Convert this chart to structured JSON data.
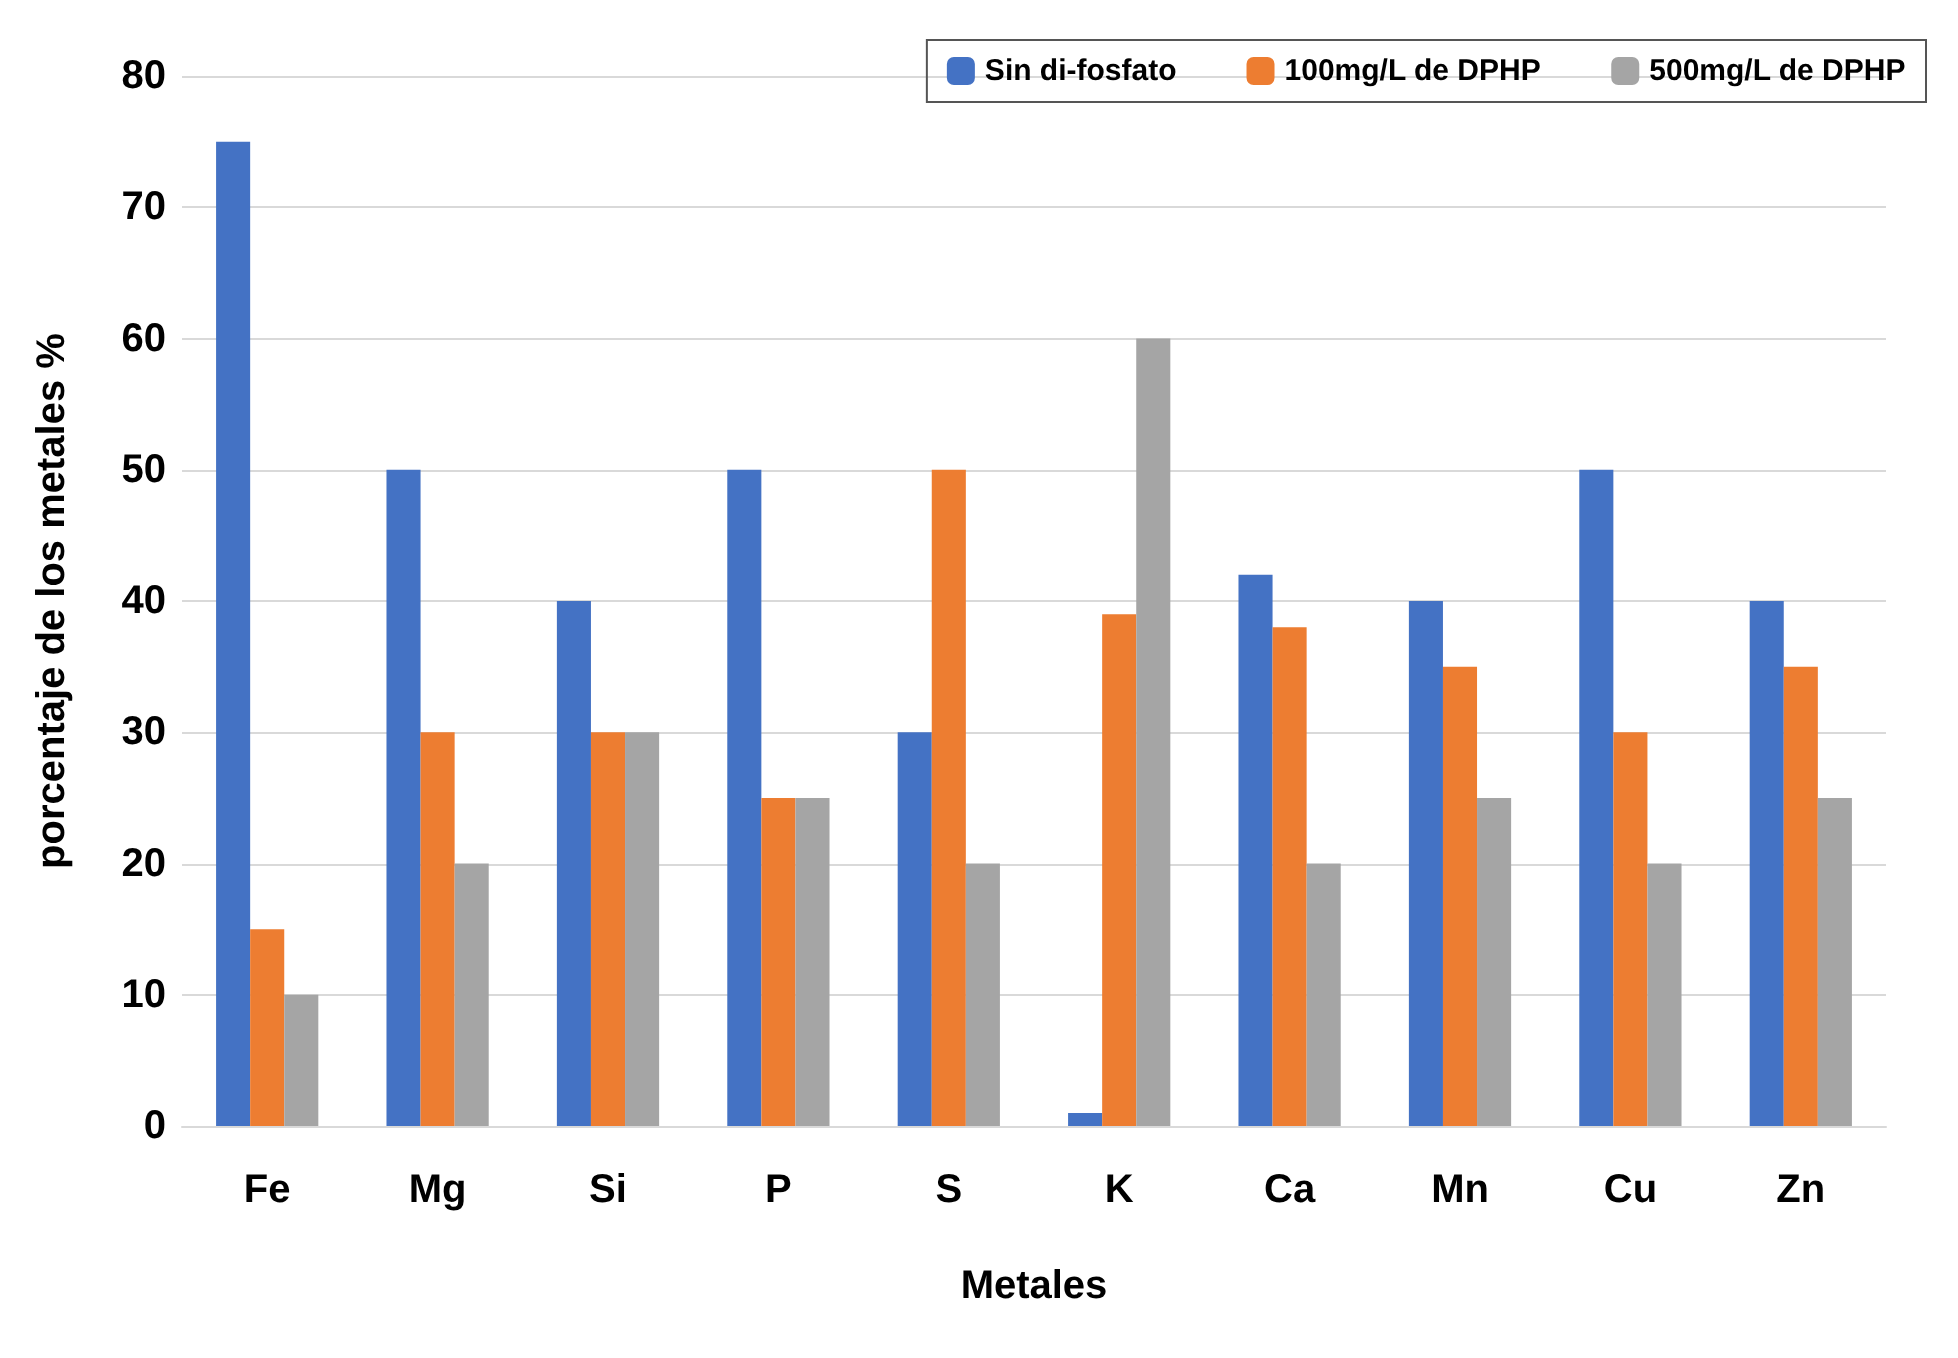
{
  "chart_data": {
    "type": "bar",
    "xlabel": "Metales",
    "ylabel": "porcentaje de los metales %",
    "categories": [
      "Fe",
      "Mg",
      "Si",
      "P",
      "S",
      "K",
      "Ca",
      "Mn",
      "Cu",
      "Zn"
    ],
    "series": [
      {
        "name": "Sin di-fosfato",
        "color": "#4472c4",
        "values": [
          75,
          50,
          40,
          50,
          30,
          1,
          42,
          40,
          50,
          40
        ]
      },
      {
        "name": "100mg/L de DPHP",
        "color": "#ed7d31",
        "values": [
          15,
          30,
          30,
          25,
          50,
          39,
          38,
          35,
          30,
          35
        ]
      },
      {
        "name": "500mg/L de DPHP",
        "color": "#a5a5a5",
        "values": [
          10,
          20,
          30,
          25,
          20,
          60,
          20,
          25,
          20,
          25
        ]
      }
    ],
    "ylim": [
      0,
      80
    ],
    "yticks": [
      0,
      10,
      20,
      30,
      40,
      50,
      60,
      70,
      80
    ],
    "grid": "y",
    "legend": "top right"
  }
}
